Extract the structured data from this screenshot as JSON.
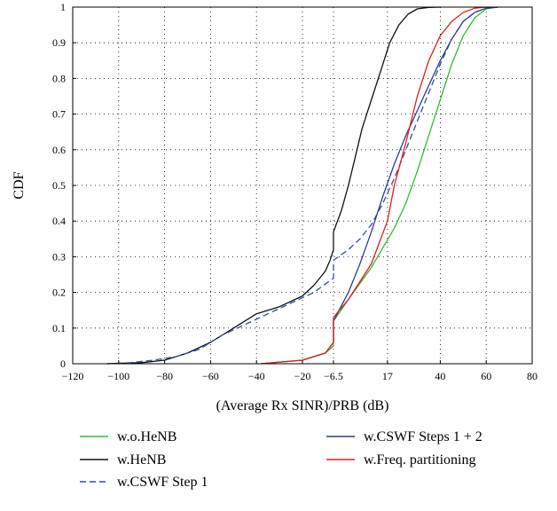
{
  "chart_data": {
    "type": "line",
    "title": "",
    "xlabel": "(Average Rx SINR)/PRB (dB)",
    "ylabel": "CDF",
    "xlim": [
      -120,
      80
    ],
    "ylim": [
      0,
      1
    ],
    "grid": true,
    "legend_position": "bottom",
    "x_ticks": [
      {
        "value": -120,
        "label": "−120"
      },
      {
        "value": -100,
        "label": "−100"
      },
      {
        "value": -80,
        "label": "−80"
      },
      {
        "value": -60,
        "label": "−60"
      },
      {
        "value": -40,
        "label": "−40"
      },
      {
        "value": -20,
        "label": "−20"
      },
      {
        "value": -6.5,
        "label": "−6.5"
      },
      {
        "value": 17,
        "label": "17"
      },
      {
        "value": 40,
        "label": "40"
      },
      {
        "value": 60,
        "label": "60"
      },
      {
        "value": 80,
        "label": "80"
      }
    ],
    "y_ticks": [
      {
        "value": 0,
        "label": "0"
      },
      {
        "value": 0.1,
        "label": "0.1"
      },
      {
        "value": 0.2,
        "label": "0.2"
      },
      {
        "value": 0.3,
        "label": "0.3"
      },
      {
        "value": 0.4,
        "label": "0.4"
      },
      {
        "value": 0.5,
        "label": "0.5"
      },
      {
        "value": 0.6,
        "label": "0.6"
      },
      {
        "value": 0.7,
        "label": "0.7"
      },
      {
        "value": 0.8,
        "label": "0.8"
      },
      {
        "value": 0.9,
        "label": "0.9"
      },
      {
        "value": 1,
        "label": "1"
      }
    ],
    "series": [
      {
        "name": "w.o.HeNB",
        "color": "#33bb33",
        "dash": false,
        "x": [
          -38,
          -20,
          -10,
          -6.5,
          -6.5,
          0,
          10,
          20,
          25,
          30,
          35,
          40,
          45,
          50,
          55,
          60,
          65
        ],
        "y": [
          0,
          0.01,
          0.03,
          0.05,
          0.12,
          0.18,
          0.27,
          0.38,
          0.45,
          0.54,
          0.64,
          0.74,
          0.84,
          0.92,
          0.97,
          0.995,
          1.0
        ]
      },
      {
        "name": "w.HeNB",
        "color": "#111111",
        "dash": false,
        "x": [
          -105,
          -90,
          -80,
          -70,
          -60,
          -50,
          -40,
          -30,
          -20,
          -15,
          -10,
          -8,
          -6.5,
          -6.5,
          -3,
          0,
          3,
          6,
          10,
          14,
          18,
          22,
          26,
          30,
          35,
          40
        ],
        "y": [
          0,
          0.003,
          0.01,
          0.03,
          0.06,
          0.1,
          0.14,
          0.16,
          0.19,
          0.22,
          0.26,
          0.29,
          0.32,
          0.37,
          0.43,
          0.5,
          0.58,
          0.66,
          0.74,
          0.82,
          0.9,
          0.95,
          0.98,
          0.995,
          0.999,
          1.0
        ]
      },
      {
        "name": "w.CSWF Step 1",
        "color": "#2f4fa8",
        "dash": true,
        "x": [
          -105,
          -95,
          -85,
          -75,
          -65,
          -55,
          -45,
          -35,
          -25,
          -15,
          -6.5,
          -6.5,
          0,
          5,
          10,
          15,
          20,
          25,
          30,
          35,
          40,
          45,
          50,
          55,
          60,
          65
        ],
        "y": [
          0,
          0.003,
          0.01,
          0.02,
          0.04,
          0.08,
          0.11,
          0.14,
          0.17,
          0.2,
          0.24,
          0.29,
          0.32,
          0.35,
          0.39,
          0.45,
          0.52,
          0.6,
          0.68,
          0.76,
          0.84,
          0.91,
          0.96,
          0.985,
          0.997,
          1.0
        ]
      },
      {
        "name": "w.CSWF Steps 1 + 2",
        "color": "#2a3f8f",
        "dash": false,
        "x": [
          -38,
          -20,
          -10,
          -6.5,
          -6.5,
          0,
          5,
          10,
          15,
          20,
          25,
          30,
          35,
          40,
          45,
          50,
          55,
          60,
          65
        ],
        "y": [
          0,
          0.01,
          0.03,
          0.06,
          0.12,
          0.2,
          0.28,
          0.37,
          0.47,
          0.56,
          0.64,
          0.71,
          0.78,
          0.85,
          0.91,
          0.96,
          0.985,
          0.997,
          1.0
        ]
      },
      {
        "name": "w.Freq. partitioning",
        "color": "#e02020",
        "dash": false,
        "x": [
          -38,
          -20,
          -10,
          -6.5,
          -6.5,
          0,
          10,
          17,
          20,
          25,
          30,
          35,
          40,
          45,
          50,
          55,
          60
        ],
        "y": [
          0,
          0.01,
          0.03,
          0.06,
          0.13,
          0.18,
          0.28,
          0.4,
          0.5,
          0.62,
          0.75,
          0.85,
          0.92,
          0.96,
          0.985,
          0.997,
          1.0
        ]
      }
    ]
  }
}
